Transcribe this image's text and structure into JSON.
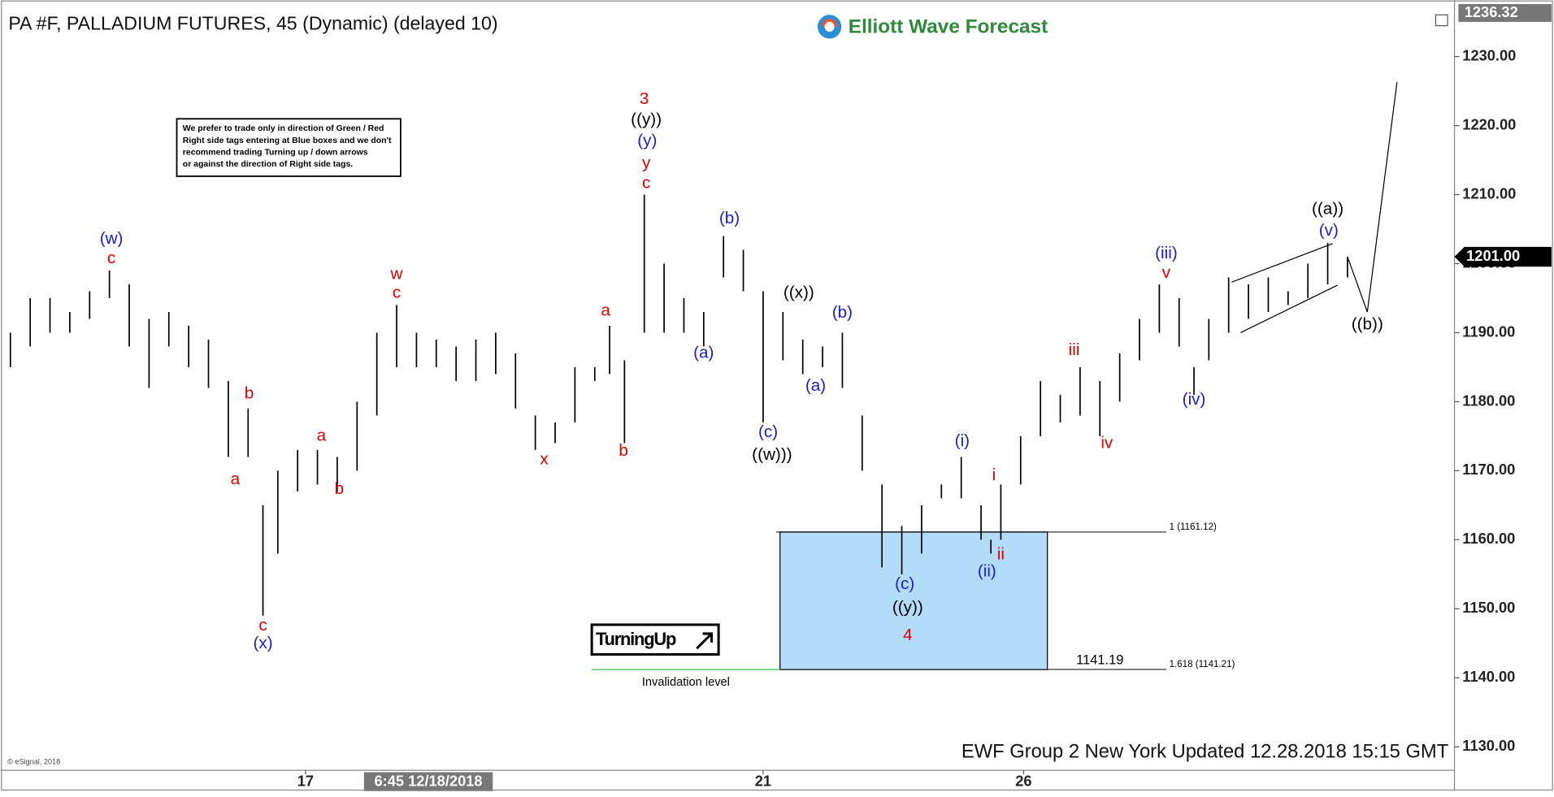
{
  "chart_data": {
    "type": "range",
    "title": "PA #F, PALLADIUM FUTURES, 45 (Dynamic) (delayed 10)",
    "logo": "Elliott Wave Forecast",
    "note": [
      "We prefer to trade only in direction of Green / Red",
      "Right side tags entering at Blue boxes and we don't",
      "recommend trading Turning up / down arrows",
      "or against the direction of Right side tags."
    ],
    "badge": "TurningUp",
    "footer": "EWF Group 2 New York  Updated 12.28.2018 15:15 GMT",
    "copyright": "© eSignal, 2018",
    "color": "#000000",
    "x": [
      1,
      3,
      5,
      7,
      9,
      11,
      13,
      15,
      17,
      19,
      21,
      23,
      25,
      26.5,
      28,
      30,
      32,
      34,
      36,
      38,
      40,
      42,
      44,
      46,
      48,
      50,
      52,
      54,
      56,
      58,
      60,
      61.5,
      63,
      65,
      67,
      69,
      71,
      73,
      75,
      77,
      79,
      81,
      83,
      85,
      87,
      89,
      91,
      93,
      95,
      97,
      99,
      100,
      101,
      103,
      105,
      107,
      109,
      111,
      113,
      115,
      117,
      119,
      120.5,
      122,
      124,
      126,
      128,
      130,
      132,
      134,
      136
    ],
    "high": [
      1190,
      1195,
      1195,
      1193,
      1196,
      1199,
      1197,
      1192,
      1193,
      1191,
      1189,
      1183,
      1179,
      1165,
      1170,
      1173,
      1173,
      1172,
      1180,
      1190,
      1194,
      1190,
      1189,
      1188,
      1189,
      1190,
      1187,
      1178,
      1177,
      1185,
      1185,
      1191,
      1186,
      1210,
      1200,
      1195,
      1193,
      1204,
      1202,
      1196,
      1193,
      1189,
      1188,
      1190,
      1178,
      1168,
      1162,
      1165,
      1168,
      1172,
      1165,
      1160,
      1168,
      1175,
      1183,
      1181,
      1185,
      1183,
      1187,
      1192,
      1197,
      1195,
      1185,
      1192,
      1198,
      1197,
      1198,
      1196,
      1200,
      1203,
      1201
    ],
    "low": [
      1185,
      1188,
      1190,
      1190,
      1192,
      1195,
      1188,
      1182,
      1188,
      1185,
      1182,
      1172,
      1172,
      1149,
      1158,
      1167,
      1168,
      1167,
      1170,
      1178,
      1185,
      1185,
      1185,
      1183,
      1183,
      1184,
      1179,
      1173,
      1174,
      1177,
      1183,
      1184,
      1174,
      1190,
      1190,
      1190,
      1188,
      1198,
      1196,
      1177,
      1186,
      1184,
      1185,
      1182,
      1170,
      1156,
      1155,
      1158,
      1166,
      1166,
      1160,
      1158,
      1160,
      1168,
      1175,
      1177,
      1178,
      1175,
      1180,
      1186,
      1190,
      1188,
      1181,
      1186,
      1190,
      1192,
      1193,
      1194,
      1195,
      1197,
      1198
    ],
    "xlim": [
      0,
      146.8
    ],
    "ylim": [
      1126.6,
      1238.2
    ],
    "yticks": [
      {
        "value": 1130,
        "label": "1130.00"
      },
      {
        "value": 1140,
        "label": "1140.00"
      },
      {
        "value": 1150,
        "label": "1150.00"
      },
      {
        "value": 1160,
        "label": "1160.00"
      },
      {
        "value": 1170,
        "label": "1170.00"
      },
      {
        "value": 1180,
        "label": "1180.00"
      },
      {
        "value": 1190,
        "label": "1190.00"
      },
      {
        "value": 1200,
        "label": "1200.00"
      },
      {
        "value": 1210,
        "label": "1210.00"
      },
      {
        "value": 1220,
        "label": "1220.00"
      },
      {
        "value": 1230,
        "label": "1230.00"
      }
    ],
    "xticks": [
      {
        "value": 30.8,
        "label": "17"
      },
      {
        "value": 77,
        "label": "21"
      },
      {
        "value": 103.3,
        "label": "26"
      }
    ],
    "x_cursor": {
      "value": 43.2,
      "label": "6:45 12/18/2018"
    },
    "top_price": 1236.32,
    "last_price": {
      "value": 1201,
      "label": "1201.00"
    },
    "zone": {
      "x": [
        78.7,
        105.7
      ],
      "y": [
        1141.19,
        1161.12
      ],
      "color": "#b3dcfa"
    },
    "levels": [
      {
        "value": 1161.12,
        "label": "1 (1161.12)",
        "x": [
          78.3,
          117.7
        ]
      },
      {
        "value": 1141.21,
        "label": "1.618 (1141.21)",
        "x": [
          105.7,
          117.7
        ]
      }
    ],
    "invalidation": {
      "value": 1141.19,
      "label": "Invalidation level",
      "x": [
        59.7,
        78.7
      ],
      "color": "#2ecc40"
    },
    "projection": {
      "x": [
        136,
        138,
        141
      ],
      "y": [
        1201,
        1193,
        1226.3
      ]
    },
    "wave_labels": [
      {
        "text": "(w)",
        "x": 11.2,
        "y": 1203.5,
        "color": "#1a1adb"
      },
      {
        "text": "c",
        "x": 11.2,
        "y": 1200.7,
        "color": "#e00000"
      },
      {
        "text": "b",
        "x": 25.1,
        "y": 1181.1,
        "color": "#e00000"
      },
      {
        "text": "a",
        "x": 23.7,
        "y": 1168.7,
        "color": "#e00000"
      },
      {
        "text": "c",
        "x": 26.5,
        "y": 1147.5,
        "color": "#e00000"
      },
      {
        "text": "(x)",
        "x": 26.5,
        "y": 1144.9,
        "color": "#1a1adb"
      },
      {
        "text": "a",
        "x": 32.4,
        "y": 1175.0,
        "color": "#e00000"
      },
      {
        "text": "b",
        "x": 34.2,
        "y": 1167.3,
        "color": "#e00000"
      },
      {
        "text": "w",
        "x": 40,
        "y": 1198.4,
        "color": "#e00000"
      },
      {
        "text": "c",
        "x": 40,
        "y": 1195.7,
        "color": "#e00000"
      },
      {
        "text": "x",
        "x": 54.9,
        "y": 1171.6,
        "color": "#e00000"
      },
      {
        "text": "a",
        "x": 61.1,
        "y": 1193.1,
        "color": "#e00000"
      },
      {
        "text": "b",
        "x": 62.9,
        "y": 1172.8,
        "color": "#e00000"
      },
      {
        "text": "3",
        "x": 65,
        "y": 1223.8,
        "color": "#e00000"
      },
      {
        "text": "((y))",
        "x": 65.2,
        "y": 1220.8,
        "color": "#000000"
      },
      {
        "text": "(y)",
        "x": 65.3,
        "y": 1217.7,
        "color": "#1a1adb"
      },
      {
        "text": "y",
        "x": 65.2,
        "y": 1214.5,
        "color": "#e00000"
      },
      {
        "text": "c",
        "x": 65.2,
        "y": 1211.6,
        "color": "#e00000"
      },
      {
        "text": "(a)",
        "x": 71,
        "y": 1187.0,
        "color": "#1a1adb"
      },
      {
        "text": "(b)",
        "x": 73.6,
        "y": 1206.5,
        "color": "#1a1adb"
      },
      {
        "text": "((x))",
        "x": 80.6,
        "y": 1195.7,
        "color": "#000000"
      },
      {
        "text": "(c)",
        "x": 77.5,
        "y": 1175.5,
        "color": "#1a1adb"
      },
      {
        "text": "((w)))",
        "x": 77.9,
        "y": 1172.2,
        "color": "#000000"
      },
      {
        "text": "(b)",
        "x": 85,
        "y": 1192.8,
        "color": "#1a1adb"
      },
      {
        "text": "(a)",
        "x": 82.3,
        "y": 1182.2,
        "color": "#1a1adb"
      },
      {
        "text": "(i)",
        "x": 97.1,
        "y": 1174.2,
        "color": "#1a1adb"
      },
      {
        "text": "i",
        "x": 100.3,
        "y": 1169.3,
        "color": "#e00000"
      },
      {
        "text": "(ii)",
        "x": 99.6,
        "y": 1155.3,
        "color": "#1a1adb"
      },
      {
        "text": "ii",
        "x": 101,
        "y": 1157.8,
        "color": "#e00000"
      },
      {
        "text": "(c)",
        "x": 91.3,
        "y": 1153.5,
        "color": "#1a1adb"
      },
      {
        "text": "((y))",
        "x": 91.6,
        "y": 1150.1,
        "color": "#000000"
      },
      {
        "text": "4",
        "x": 91.6,
        "y": 1146.1,
        "color": "#e00000"
      },
      {
        "text": "iii",
        "x": 108.4,
        "y": 1187.4,
        "color": "#e00000"
      },
      {
        "text": "iv",
        "x": 111.7,
        "y": 1173.9,
        "color": "#e00000"
      },
      {
        "text": "(iii)",
        "x": 117.7,
        "y": 1201.4,
        "color": "#1a1adb"
      },
      {
        "text": "v",
        "x": 117.7,
        "y": 1198.6,
        "color": "#e00000"
      },
      {
        "text": "(iv)",
        "x": 120.5,
        "y": 1180.2,
        "color": "#1a1adb"
      },
      {
        "text": "((a))",
        "x": 134,
        "y": 1207.8,
        "color": "#000000"
      },
      {
        "text": "(v)",
        "x": 134.1,
        "y": 1204.7,
        "color": "#1a1adb"
      },
      {
        "text": "((b))",
        "x": 138,
        "y": 1191.1,
        "color": "#000000"
      }
    ]
  }
}
